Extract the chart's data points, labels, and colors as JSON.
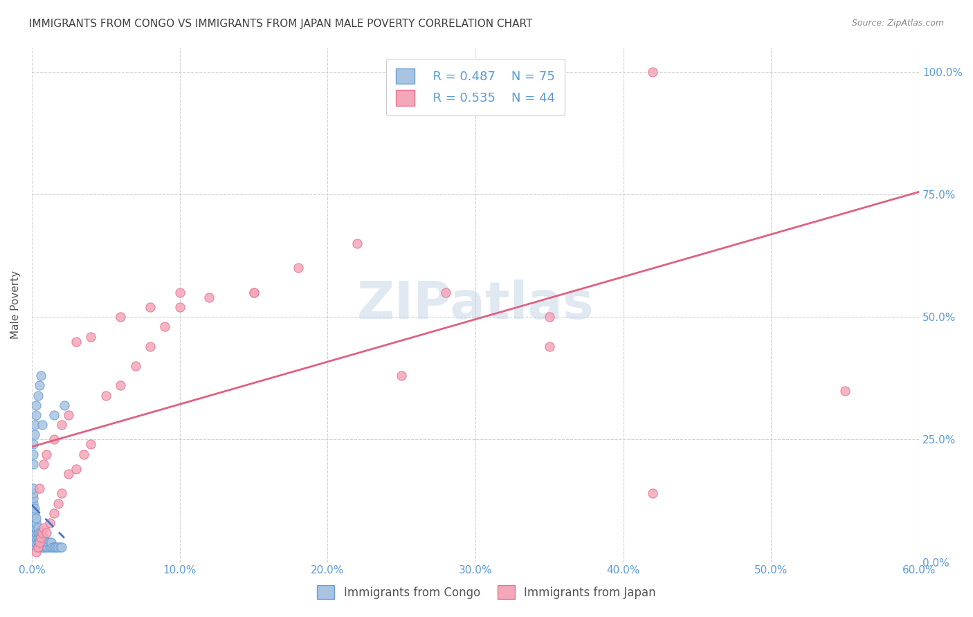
{
  "title": "IMMIGRANTS FROM CONGO VS IMMIGRANTS FROM JAPAN MALE POVERTY CORRELATION CHART",
  "source": "Source: ZipAtlas.com",
  "xlim": [
    0.0,
    0.6
  ],
  "ylim": [
    0.0,
    1.05
  ],
  "ylabel": "Male Poverty",
  "congo_R": 0.487,
  "congo_N": 75,
  "japan_R": 0.535,
  "japan_N": 44,
  "congo_color": "#a8c4e0",
  "congo_edge": "#6a9fd8",
  "japan_color": "#f4a7b9",
  "japan_edge": "#e87090",
  "congo_line_color": "#4472c4",
  "japan_line_color": "#e06080",
  "watermark_color": "#c8d8e8",
  "title_color": "#404040",
  "axis_label_color": "#5b9bd5",
  "grid_color": "#d0d0d0",
  "congo_x": [
    0.001,
    0.001,
    0.001,
    0.001,
    0.001,
    0.001,
    0.001,
    0.001,
    0.001,
    0.001,
    0.001,
    0.002,
    0.002,
    0.002,
    0.002,
    0.002,
    0.002,
    0.002,
    0.002,
    0.003,
    0.003,
    0.003,
    0.003,
    0.003,
    0.003,
    0.003,
    0.004,
    0.004,
    0.004,
    0.004,
    0.004,
    0.005,
    0.005,
    0.005,
    0.005,
    0.006,
    0.006,
    0.006,
    0.006,
    0.007,
    0.007,
    0.007,
    0.008,
    0.008,
    0.008,
    0.009,
    0.009,
    0.01,
    0.01,
    0.011,
    0.011,
    0.012,
    0.012,
    0.013,
    0.013,
    0.014,
    0.015,
    0.016,
    0.017,
    0.018,
    0.019,
    0.02,
    0.001,
    0.001,
    0.001,
    0.002,
    0.002,
    0.003,
    0.003,
    0.004,
    0.005,
    0.006,
    0.007,
    0.015,
    0.022
  ],
  "congo_y": [
    0.05,
    0.06,
    0.07,
    0.08,
    0.09,
    0.1,
    0.11,
    0.12,
    0.13,
    0.14,
    0.15,
    0.04,
    0.05,
    0.06,
    0.07,
    0.08,
    0.09,
    0.1,
    0.11,
    0.03,
    0.04,
    0.05,
    0.06,
    0.07,
    0.08,
    0.09,
    0.03,
    0.04,
    0.05,
    0.06,
    0.07,
    0.03,
    0.04,
    0.05,
    0.06,
    0.03,
    0.04,
    0.05,
    0.06,
    0.03,
    0.04,
    0.05,
    0.03,
    0.04,
    0.05,
    0.03,
    0.04,
    0.03,
    0.04,
    0.03,
    0.04,
    0.03,
    0.04,
    0.03,
    0.04,
    0.03,
    0.03,
    0.03,
    0.03,
    0.03,
    0.03,
    0.03,
    0.2,
    0.22,
    0.24,
    0.26,
    0.28,
    0.3,
    0.32,
    0.34,
    0.36,
    0.38,
    0.28,
    0.3,
    0.32
  ],
  "japan_x": [
    0.003,
    0.004,
    0.005,
    0.006,
    0.007,
    0.008,
    0.01,
    0.012,
    0.015,
    0.018,
    0.02,
    0.025,
    0.03,
    0.035,
    0.04,
    0.05,
    0.06,
    0.07,
    0.08,
    0.09,
    0.1,
    0.12,
    0.15,
    0.18,
    0.22,
    0.28,
    0.35,
    0.42,
    0.55,
    0.005,
    0.008,
    0.01,
    0.015,
    0.02,
    0.025,
    0.03,
    0.04,
    0.06,
    0.08,
    0.1,
    0.15,
    0.25,
    0.35,
    0.42
  ],
  "japan_y": [
    0.02,
    0.03,
    0.04,
    0.05,
    0.06,
    0.07,
    0.06,
    0.08,
    0.1,
    0.12,
    0.14,
    0.18,
    0.19,
    0.22,
    0.24,
    0.34,
    0.36,
    0.4,
    0.44,
    0.48,
    0.52,
    0.54,
    0.55,
    0.6,
    0.65,
    0.55,
    0.5,
    1.0,
    0.35,
    0.15,
    0.2,
    0.22,
    0.25,
    0.28,
    0.3,
    0.45,
    0.46,
    0.5,
    0.52,
    0.55,
    0.55,
    0.38,
    0.44,
    0.14
  ]
}
